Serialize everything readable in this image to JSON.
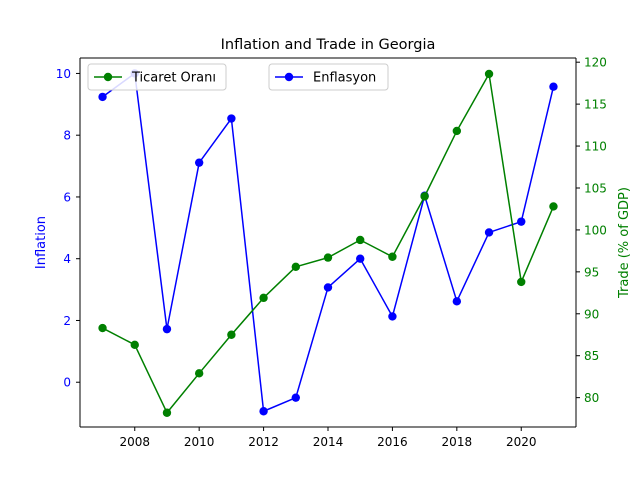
{
  "chart_data": {
    "type": "line",
    "title": "Inflation and Trade in Georgia",
    "x": [
      2007,
      2008,
      2009,
      2010,
      2011,
      2012,
      2013,
      2014,
      2015,
      2016,
      2017,
      2018,
      2019,
      2020,
      2021
    ],
    "xlim": [
      2006.3,
      2021.7
    ],
    "xticks": [
      2008,
      2010,
      2012,
      2014,
      2016,
      2018,
      2020
    ],
    "left_axis": {
      "label": "Inflation",
      "color": "#0000ff",
      "ylim": [
        -1.45,
        10.5
      ],
      "ticks": [
        0,
        2,
        4,
        6,
        8,
        10
      ]
    },
    "right_axis": {
      "label": "Trade (% of GDP)",
      "color": "#008000",
      "ylim": [
        76.5,
        120.5
      ],
      "ticks": [
        80,
        85,
        90,
        95,
        100,
        105,
        110,
        115,
        120
      ]
    },
    "series": [
      {
        "name": "Enflasyon",
        "axis": "left",
        "color": "#0000ff",
        "values": [
          9.24,
          10.0,
          1.72,
          7.11,
          8.54,
          -0.94,
          -0.5,
          3.07,
          4.0,
          2.13,
          6.04,
          2.62,
          4.85,
          5.2,
          9.57
        ]
      },
      {
        "name": "Ticaret Oranı",
        "axis": "right",
        "color": "#008000",
        "values": [
          88.3,
          86.3,
          78.2,
          82.9,
          87.5,
          91.9,
          95.6,
          96.7,
          98.8,
          96.8,
          104.0,
          111.8,
          118.6,
          93.8,
          102.8
        ]
      }
    ],
    "legend": [
      {
        "series": 1,
        "placement": "upper-left"
      },
      {
        "series": 0,
        "placement": "upper-center"
      }
    ]
  }
}
